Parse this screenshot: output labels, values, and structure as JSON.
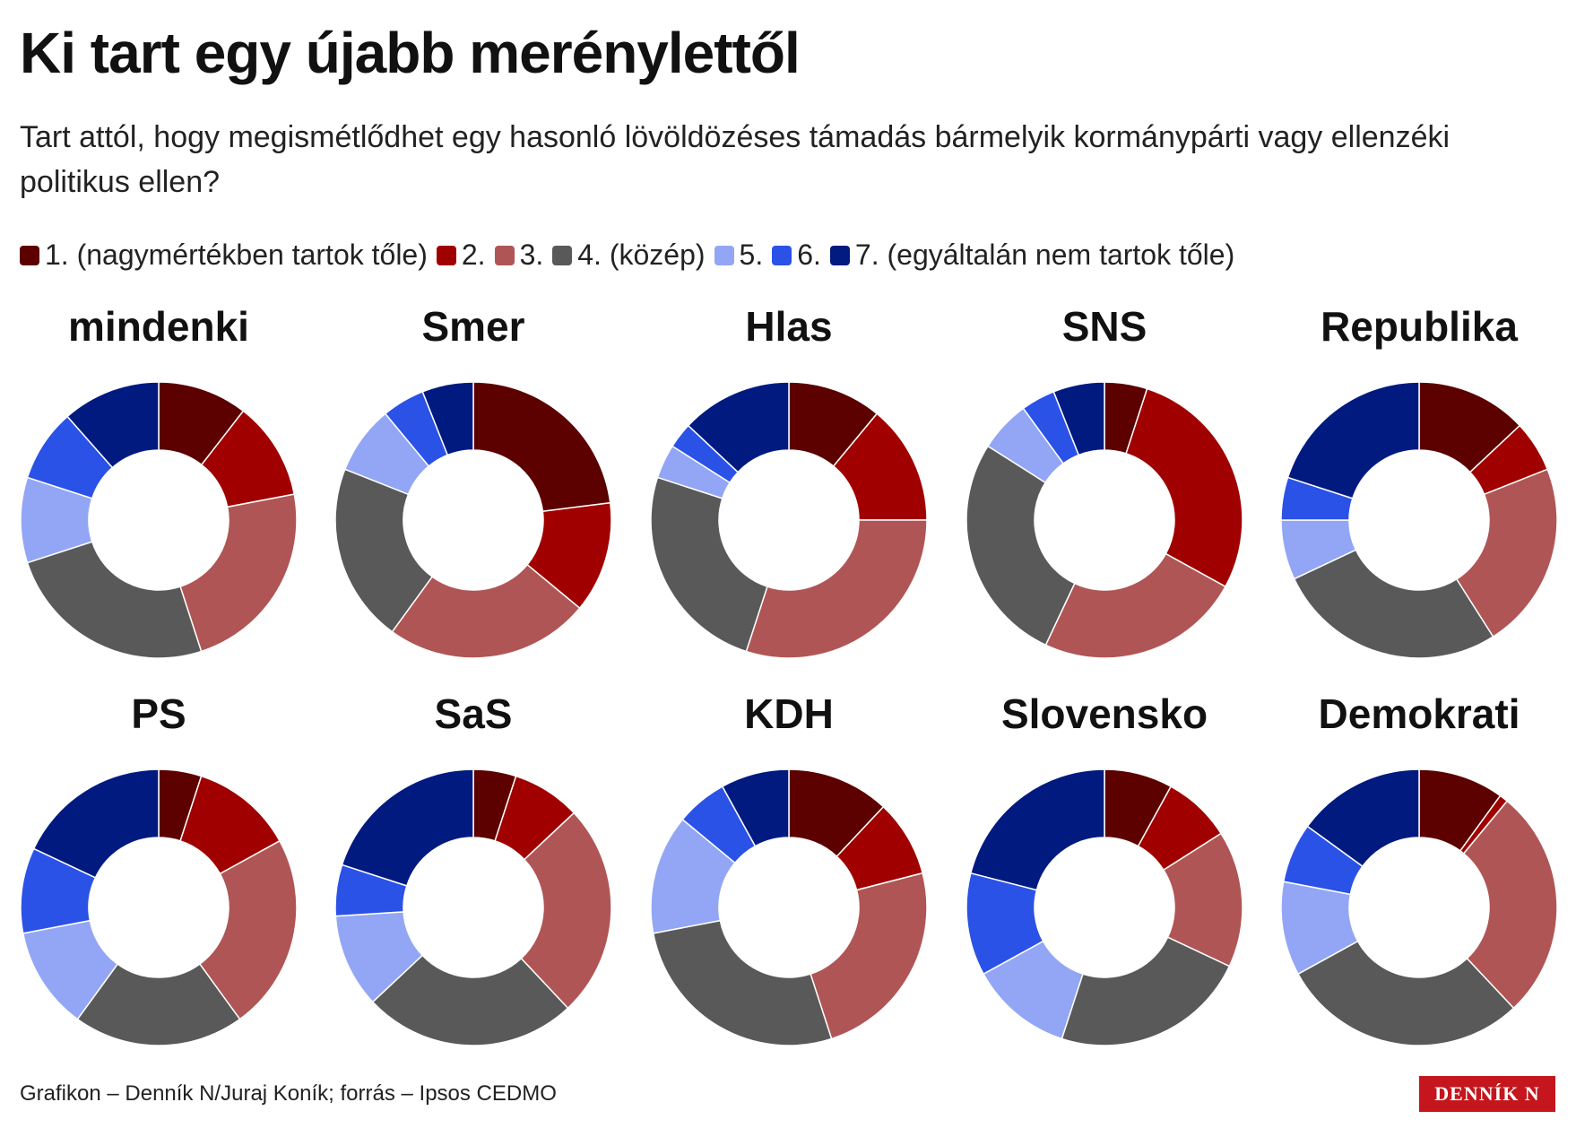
{
  "title": "Ki tart egy újabb merénylettől",
  "subtitle": "Tart attól, hogy megismétlődhet egy hasonló lövöldözéses támadás bármelyik kormánypárti vagy ellenzéki politikus ellen?",
  "legend": {
    "categories": [
      "1. (nagymértékben tartok tőle)",
      "2.",
      "3.",
      "4. (közép)",
      "5.",
      "6.",
      "7. (egyáltalán nem tartok tőle)"
    ],
    "colors": [
      "#5c0000",
      "#a00000",
      "#b05555",
      "#595959",
      "#93a6f5",
      "#2b52e6",
      "#001a80"
    ]
  },
  "chart_data": [
    {
      "type": "donut",
      "title": "mindenki",
      "values": [
        10.5,
        11.5,
        23,
        25,
        10,
        8.5,
        11.5
      ]
    },
    {
      "type": "donut",
      "title": "Smer",
      "values": [
        23,
        13,
        24,
        21,
        8,
        5,
        6
      ]
    },
    {
      "type": "donut",
      "title": "Hlas",
      "values": [
        11,
        14,
        30,
        25,
        4,
        3,
        13
      ]
    },
    {
      "type": "donut",
      "title": "SNS",
      "values": [
        5,
        28,
        24,
        27,
        6,
        4,
        6
      ]
    },
    {
      "type": "donut",
      "title": "Republika",
      "values": [
        13,
        6,
        22,
        27,
        7,
        5,
        20
      ]
    },
    {
      "type": "donut",
      "title": "PS",
      "values": [
        5,
        12,
        23,
        20,
        12,
        10,
        18
      ]
    },
    {
      "type": "donut",
      "title": "SaS",
      "values": [
        5,
        8,
        25,
        25,
        11,
        6,
        20
      ]
    },
    {
      "type": "donut",
      "title": "KDH",
      "values": [
        12,
        9,
        24,
        27,
        14,
        6,
        8
      ]
    },
    {
      "type": "donut",
      "title": "Slovensko",
      "values": [
        8,
        8,
        16,
        23,
        12,
        12,
        21
      ]
    },
    {
      "type": "donut",
      "title": "Demokrati",
      "values": [
        10,
        1,
        27,
        29,
        11,
        7,
        15
      ]
    }
  ],
  "footer": "Grafikon – Denník N/Juraj Koník; forrás – Ipsos CEDMO",
  "logo": "DENNÍK N"
}
